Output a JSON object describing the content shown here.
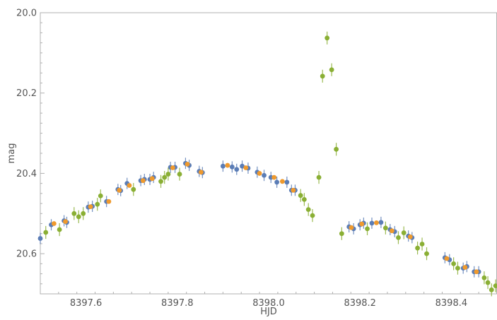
{
  "chart_data": {
    "type": "scatter",
    "title": "",
    "xlabel": "HJD",
    "ylabel": "mag",
    "xlim": [
      8397.5,
      8398.5
    ],
    "ylim": [
      20.7,
      20.0
    ],
    "y_inverted": true,
    "grid": false,
    "x_ticks": [
      8397.6,
      8397.8,
      8398.0,
      8398.2,
      8398.4
    ],
    "x_tick_labels": [
      "8397.6",
      "8397.8",
      "8398.0",
      "8398.2",
      "8398.4"
    ],
    "y_ticks": [
      20.0,
      20.2,
      20.4,
      20.6
    ],
    "y_tick_labels": [
      "20.0",
      "20.2",
      "20.4",
      "20.6"
    ],
    "series": [
      {
        "color": "#5b7db6",
        "error": 0.014,
        "points": [
          [
            8397.5,
            20.562
          ],
          [
            8397.524,
            20.528
          ],
          [
            8397.552,
            20.518
          ],
          [
            8397.558,
            20.522
          ],
          [
            8397.605,
            20.484
          ],
          [
            8397.614,
            20.482
          ],
          [
            8397.645,
            20.47
          ],
          [
            8397.67,
            20.44
          ],
          [
            8397.676,
            20.443
          ],
          [
            8397.69,
            20.425
          ],
          [
            8397.72,
            20.418
          ],
          [
            8397.728,
            20.415
          ],
          [
            8397.74,
            20.415
          ],
          [
            8397.748,
            20.41
          ],
          [
            8397.785,
            20.385
          ],
          [
            8397.795,
            20.385
          ],
          [
            8397.818,
            20.375
          ],
          [
            8397.826,
            20.38
          ],
          [
            8397.848,
            20.395
          ],
          [
            8397.855,
            20.398
          ],
          [
            8397.9,
            20.382
          ],
          [
            8397.92,
            20.384
          ],
          [
            8397.93,
            20.39
          ],
          [
            8397.942,
            20.382
          ],
          [
            8397.955,
            20.387
          ],
          [
            8397.975,
            20.397
          ],
          [
            8397.99,
            20.405
          ],
          [
            8398.005,
            20.41
          ],
          [
            8398.018,
            20.422
          ],
          [
            8398.04,
            20.422
          ],
          [
            8398.05,
            20.442
          ],
          [
            8398.058,
            20.442
          ],
          [
            8398.176,
            20.533
          ],
          [
            8398.186,
            20.538
          ],
          [
            8398.2,
            20.528
          ],
          [
            8398.208,
            20.524
          ],
          [
            8398.226,
            20.524
          ],
          [
            8398.246,
            20.522
          ],
          [
            8398.266,
            20.54
          ],
          [
            8398.276,
            20.545
          ],
          [
            8398.306,
            20.556
          ],
          [
            8398.314,
            20.56
          ],
          [
            8398.386,
            20.61
          ],
          [
            8398.396,
            20.615
          ],
          [
            8398.426,
            20.636
          ],
          [
            8398.434,
            20.632
          ],
          [
            8398.45,
            20.645
          ],
          [
            8398.46,
            20.645
          ]
        ]
      },
      {
        "color": "#ef9a2e",
        "error": 0.0,
        "points": [
          [
            8397.53,
            20.525
          ],
          [
            8397.555,
            20.52
          ],
          [
            8397.61,
            20.483
          ],
          [
            8397.65,
            20.47
          ],
          [
            8397.673,
            20.442
          ],
          [
            8397.695,
            20.43
          ],
          [
            8397.725,
            20.418
          ],
          [
            8397.745,
            20.413
          ],
          [
            8397.79,
            20.386
          ],
          [
            8397.822,
            20.377
          ],
          [
            8397.852,
            20.397
          ],
          [
            8397.91,
            20.38
          ],
          [
            8397.95,
            20.386
          ],
          [
            8397.98,
            20.4
          ],
          [
            8398.012,
            20.41
          ],
          [
            8398.03,
            20.42
          ],
          [
            8398.054,
            20.442
          ],
          [
            8398.181,
            20.535
          ],
          [
            8398.204,
            20.526
          ],
          [
            8398.236,
            20.523
          ],
          [
            8398.27,
            20.543
          ],
          [
            8398.31,
            20.558
          ],
          [
            8398.39,
            20.612
          ],
          [
            8398.43,
            20.634
          ],
          [
            8398.455,
            20.645
          ]
        ]
      },
      {
        "color": "#8aaf34",
        "error": 0.016,
        "points": [
          [
            8397.512,
            20.547
          ],
          [
            8397.542,
            20.54
          ],
          [
            8397.574,
            20.5
          ],
          [
            8397.584,
            20.508
          ],
          [
            8397.594,
            20.5
          ],
          [
            8397.625,
            20.477
          ],
          [
            8397.632,
            20.456
          ],
          [
            8397.704,
            20.44
          ],
          [
            8397.764,
            20.42
          ],
          [
            8397.772,
            20.41
          ],
          [
            8397.78,
            20.402
          ],
          [
            8397.805,
            20.402
          ],
          [
            8398.07,
            20.455
          ],
          [
            8398.078,
            20.465
          ],
          [
            8398.087,
            20.49
          ],
          [
            8398.096,
            20.505
          ],
          [
            8398.11,
            20.41
          ],
          [
            8398.118,
            20.158
          ],
          [
            8398.128,
            20.063
          ],
          [
            8398.138,
            20.142
          ],
          [
            8398.148,
            20.34
          ],
          [
            8398.16,
            20.55
          ],
          [
            8398.216,
            20.538
          ],
          [
            8398.256,
            20.536
          ],
          [
            8398.284,
            20.56
          ],
          [
            8398.296,
            20.548
          ],
          [
            8398.326,
            20.586
          ],
          [
            8398.336,
            20.576
          ],
          [
            8398.346,
            20.6
          ],
          [
            8398.405,
            20.625
          ],
          [
            8398.414,
            20.636
          ],
          [
            8398.472,
            20.66
          ],
          [
            8398.48,
            20.672
          ],
          [
            8398.488,
            20.69
          ],
          [
            8398.497,
            20.68
          ]
        ]
      }
    ]
  }
}
